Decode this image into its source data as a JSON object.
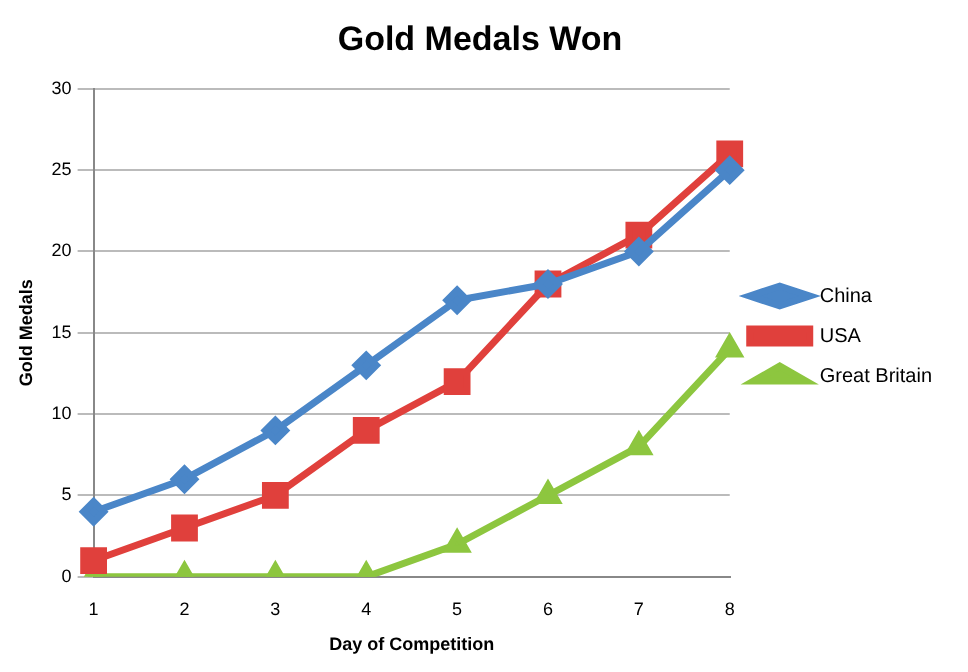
{
  "chart_data": {
    "type": "line",
    "title": "Gold Medals Won",
    "xlabel": "Day of Competition",
    "ylabel": "Gold Medals",
    "categories": [
      "1",
      "2",
      "3",
      "4",
      "5",
      "6",
      "7",
      "8"
    ],
    "series": [
      {
        "name": "China",
        "color": "#4a86c8",
        "marker": "diamond",
        "values": [
          4,
          6,
          9,
          13,
          17,
          18,
          20,
          25
        ]
      },
      {
        "name": "USA",
        "color": "#e0403c",
        "marker": "square",
        "values": [
          1,
          3,
          5,
          9,
          12,
          18,
          21,
          26
        ]
      },
      {
        "name": "Great Britain",
        "color": "#8dc63f",
        "marker": "triangle",
        "values": [
          0,
          0,
          0,
          0,
          2,
          5,
          8,
          14
        ]
      }
    ],
    "ylim": [
      0,
      30
    ],
    "yticks": [
      0,
      5,
      10,
      15,
      20,
      25,
      30
    ],
    "grid": "y",
    "legend": "right",
    "line_style": "solid"
  }
}
